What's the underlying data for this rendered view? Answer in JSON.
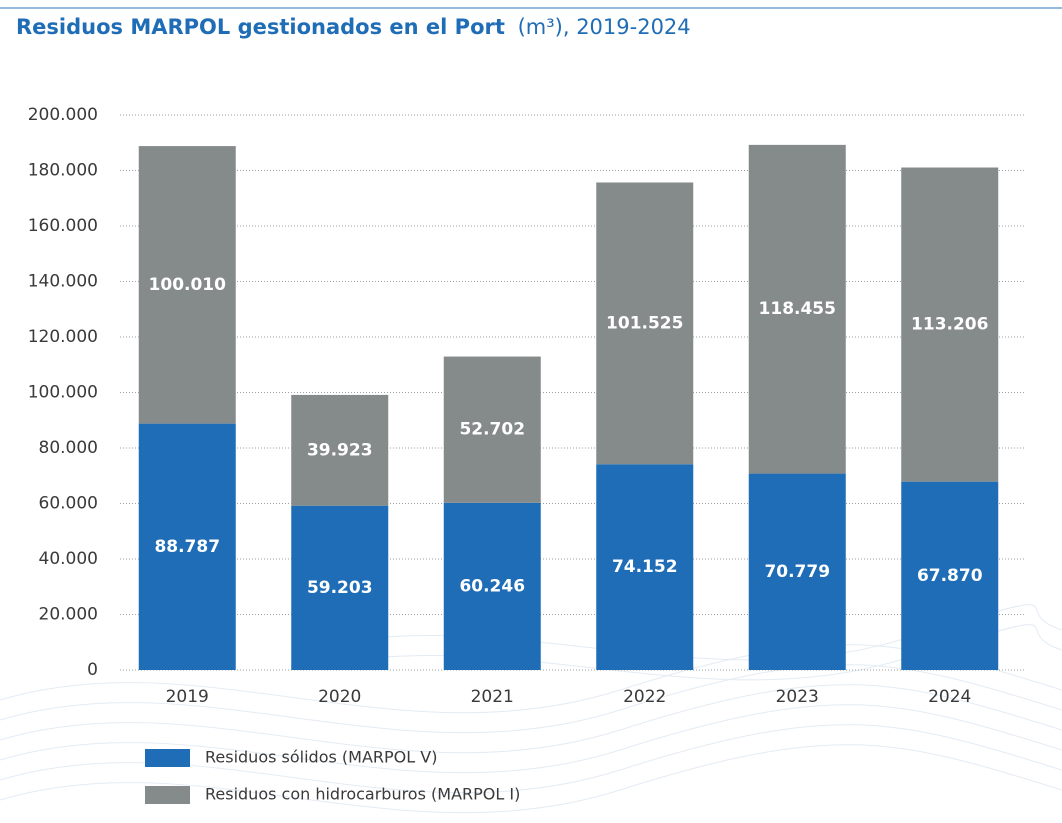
{
  "chart_data": {
    "type": "stacked_bar",
    "title": "Residuos MARPOL gestionados en el Port",
    "subtitle": "(m³), 2019-2024",
    "categories": [
      "2019",
      "2020",
      "2021",
      "2022",
      "2023",
      "2024"
    ],
    "series": [
      {
        "name": "Residuos sólidos (MARPOL V)",
        "color": "#1f6db6",
        "values": [
          88787,
          59203,
          60246,
          74152,
          70779,
          67870
        ],
        "value_labels": [
          "88.787",
          "59.203",
          "60.246",
          "74.152",
          "70.779",
          "67.870"
        ]
      },
      {
        "name": "Residuos con hidrocarburos (MARPOL I)",
        "color": "#858a8b",
        "values": [
          100010,
          39923,
          52702,
          101525,
          118455,
          113206
        ],
        "value_labels": [
          "100.010",
          "39.923",
          "52.702",
          "101.525",
          "118.455",
          "113.206"
        ]
      }
    ],
    "ylim": [
      0,
      200000
    ],
    "yticks": [
      0,
      {
        "value": 20000,
        "label": "20.000"
      },
      {
        "value": 40000,
        "label": "40.000"
      },
      {
        "value": 60000,
        "label": "60.000"
      },
      {
        "value": 80000,
        "label": "80.000"
      },
      {
        "value": 100000,
        "label": "100.000"
      },
      {
        "value": 120000,
        "label": "120.000"
      },
      {
        "value": 140000,
        "label": "140.000"
      },
      {
        "value": 160000,
        "label": "160.000"
      },
      {
        "value": 180000,
        "label": "180.000"
      },
      {
        "value": 200000,
        "label": "200.000"
      }
    ],
    "grid": true
  }
}
